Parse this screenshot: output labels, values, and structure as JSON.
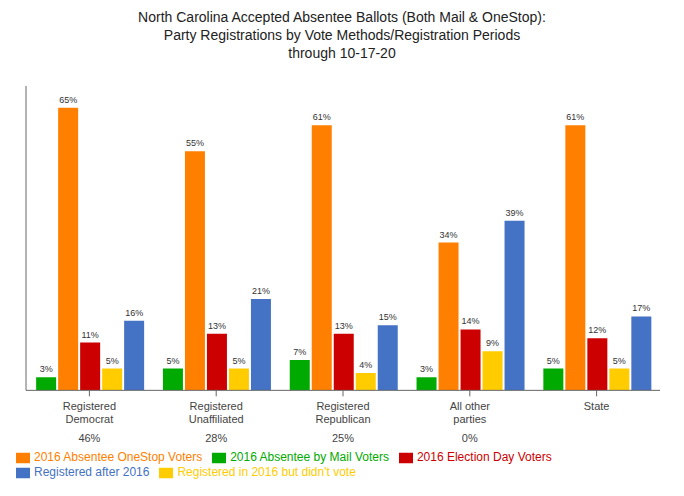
{
  "chart_data": {
    "type": "bar",
    "title": "North Carolina Accepted Absentee Ballots (Both Mail & OneStop):\nParty Registrations by Vote Methods/Registration Periods\nthrough 10-17-20",
    "categories": [
      "Registered Democrat",
      "Registered Unaffiliated",
      "Registered Republican",
      "All other parties",
      "State"
    ],
    "group_pct_labels": [
      "46%",
      "28%",
      "25%",
      "0%",
      null
    ],
    "series": [
      {
        "name": "2016 Absentee by Mail Voters",
        "color": "#00AA00",
        "values": [
          3,
          5,
          7,
          3,
          5
        ],
        "value_labels": [
          "3%",
          "5%",
          "7%",
          "3%",
          "5%"
        ]
      },
      {
        "name": "2016 Absentee OneStop Voters",
        "color": "#FF8000",
        "values": [
          65,
          55,
          61,
          34,
          61
        ],
        "value_labels": [
          "65%",
          "55%",
          "61%",
          "34%",
          "61%"
        ]
      },
      {
        "name": "2016 Election Day Voters",
        "color": "#CC0000",
        "values": [
          11,
          13,
          13,
          14,
          12
        ],
        "value_labels": [
          "11%",
          "13%",
          "13%",
          "14%",
          "12%"
        ]
      },
      {
        "name": "Registered in 2016 but didn't vote",
        "color": "#FFCC00",
        "values": [
          5,
          5,
          4,
          9,
          5
        ],
        "value_labels": [
          "5%",
          "5%",
          "4%",
          "9%",
          "5%"
        ]
      },
      {
        "name": "Registered after 2016",
        "color": "#4472C4",
        "values": [
          16,
          21,
          15,
          39,
          17
        ],
        "value_labels": [
          "16%",
          "21%",
          "15%",
          "39%",
          "17%"
        ]
      }
    ],
    "ylim": [
      0,
      70
    ],
    "tick_labels": "x",
    "data_labels": true,
    "legend": "lower left"
  }
}
